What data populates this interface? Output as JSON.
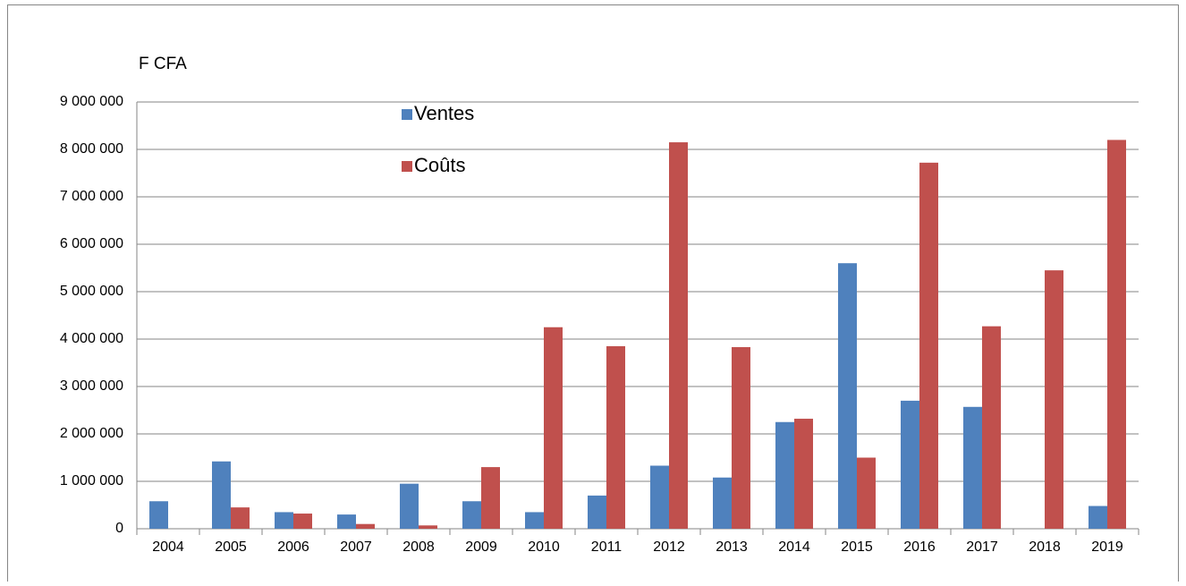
{
  "chart_data": {
    "type": "bar",
    "y_label": "F CFA",
    "categories": [
      "2004",
      "2005",
      "2006",
      "2007",
      "2008",
      "2009",
      "2010",
      "2011",
      "2012",
      "2013",
      "2014",
      "2015",
      "2016",
      "2017",
      "2018",
      "2019"
    ],
    "series": [
      {
        "name": "Ventes",
        "color": "#4f81bd",
        "values": [
          580000,
          1420000,
          350000,
          300000,
          950000,
          580000,
          350000,
          700000,
          1330000,
          1080000,
          2250000,
          5600000,
          2700000,
          2570000,
          0,
          480000
        ]
      },
      {
        "name": "Coûts",
        "color": "#c0504d",
        "values": [
          0,
          450000,
          320000,
          100000,
          70000,
          1300000,
          4250000,
          3850000,
          8150000,
          3830000,
          2320000,
          1500000,
          7720000,
          4270000,
          5450000,
          8200000
        ]
      }
    ],
    "ylim": [
      0,
      9000000
    ],
    "yticks": [
      0,
      {
        "value": 1000000,
        "label": "1 000 000"
      },
      {
        "value": 2000000,
        "label": "2 000 000"
      },
      {
        "value": 3000000,
        "label": "3 000 000"
      },
      {
        "value": 4000000,
        "label": "4 000 000"
      },
      {
        "value": 5000000,
        "label": "5 000 000"
      },
      {
        "value": 6000000,
        "label": "6 000 000"
      },
      {
        "value": 7000000,
        "label": "7 000 000"
      },
      {
        "value": 8000000,
        "label": "8 000 000"
      },
      {
        "value": 9000000,
        "label": "9 000 000"
      }
    ],
    "grid": true
  }
}
